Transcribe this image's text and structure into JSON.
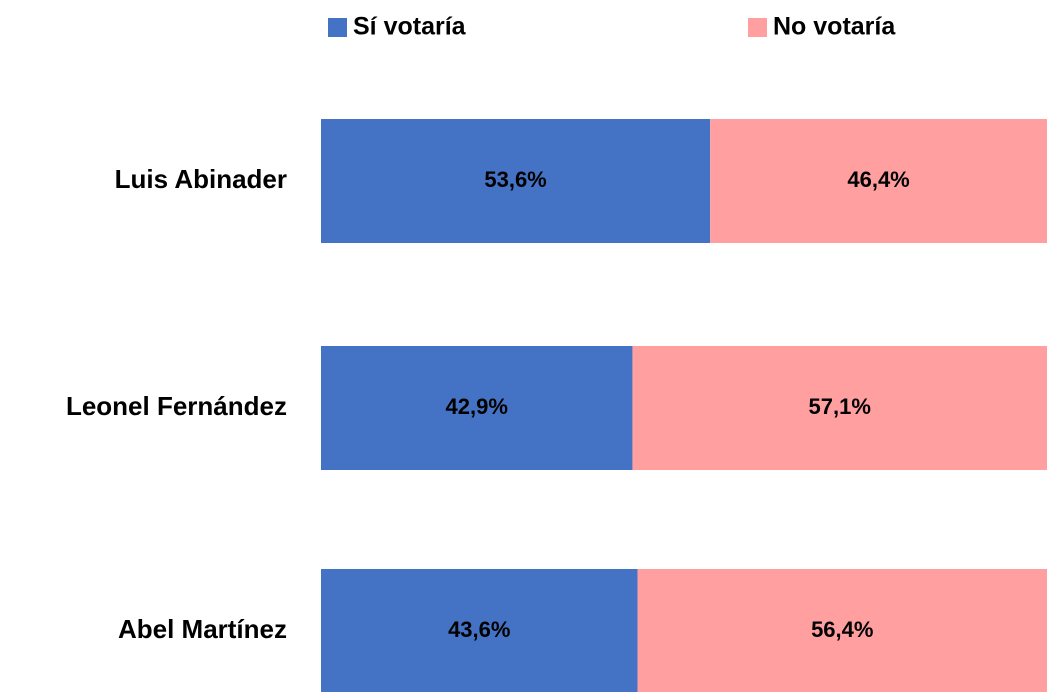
{
  "chart_data": {
    "type": "stacked_bar_horizontal",
    "categories": [
      "Luis Abinader",
      "Leonel Fernández",
      "Abel Martínez"
    ],
    "series": [
      {
        "name": "Sí votaría",
        "color": "#4472c4",
        "values": [
          53.6,
          42.9,
          43.6
        ],
        "value_labels": [
          "53,6%",
          "42,9%",
          "43,6%"
        ]
      },
      {
        "name": "No votaría",
        "color": "#ff9f9f",
        "values": [
          46.4,
          57.1,
          56.4
        ],
        "value_labels": [
          "46,4%",
          "57,1%",
          "56,4%"
        ]
      }
    ],
    "legend": "top"
  }
}
